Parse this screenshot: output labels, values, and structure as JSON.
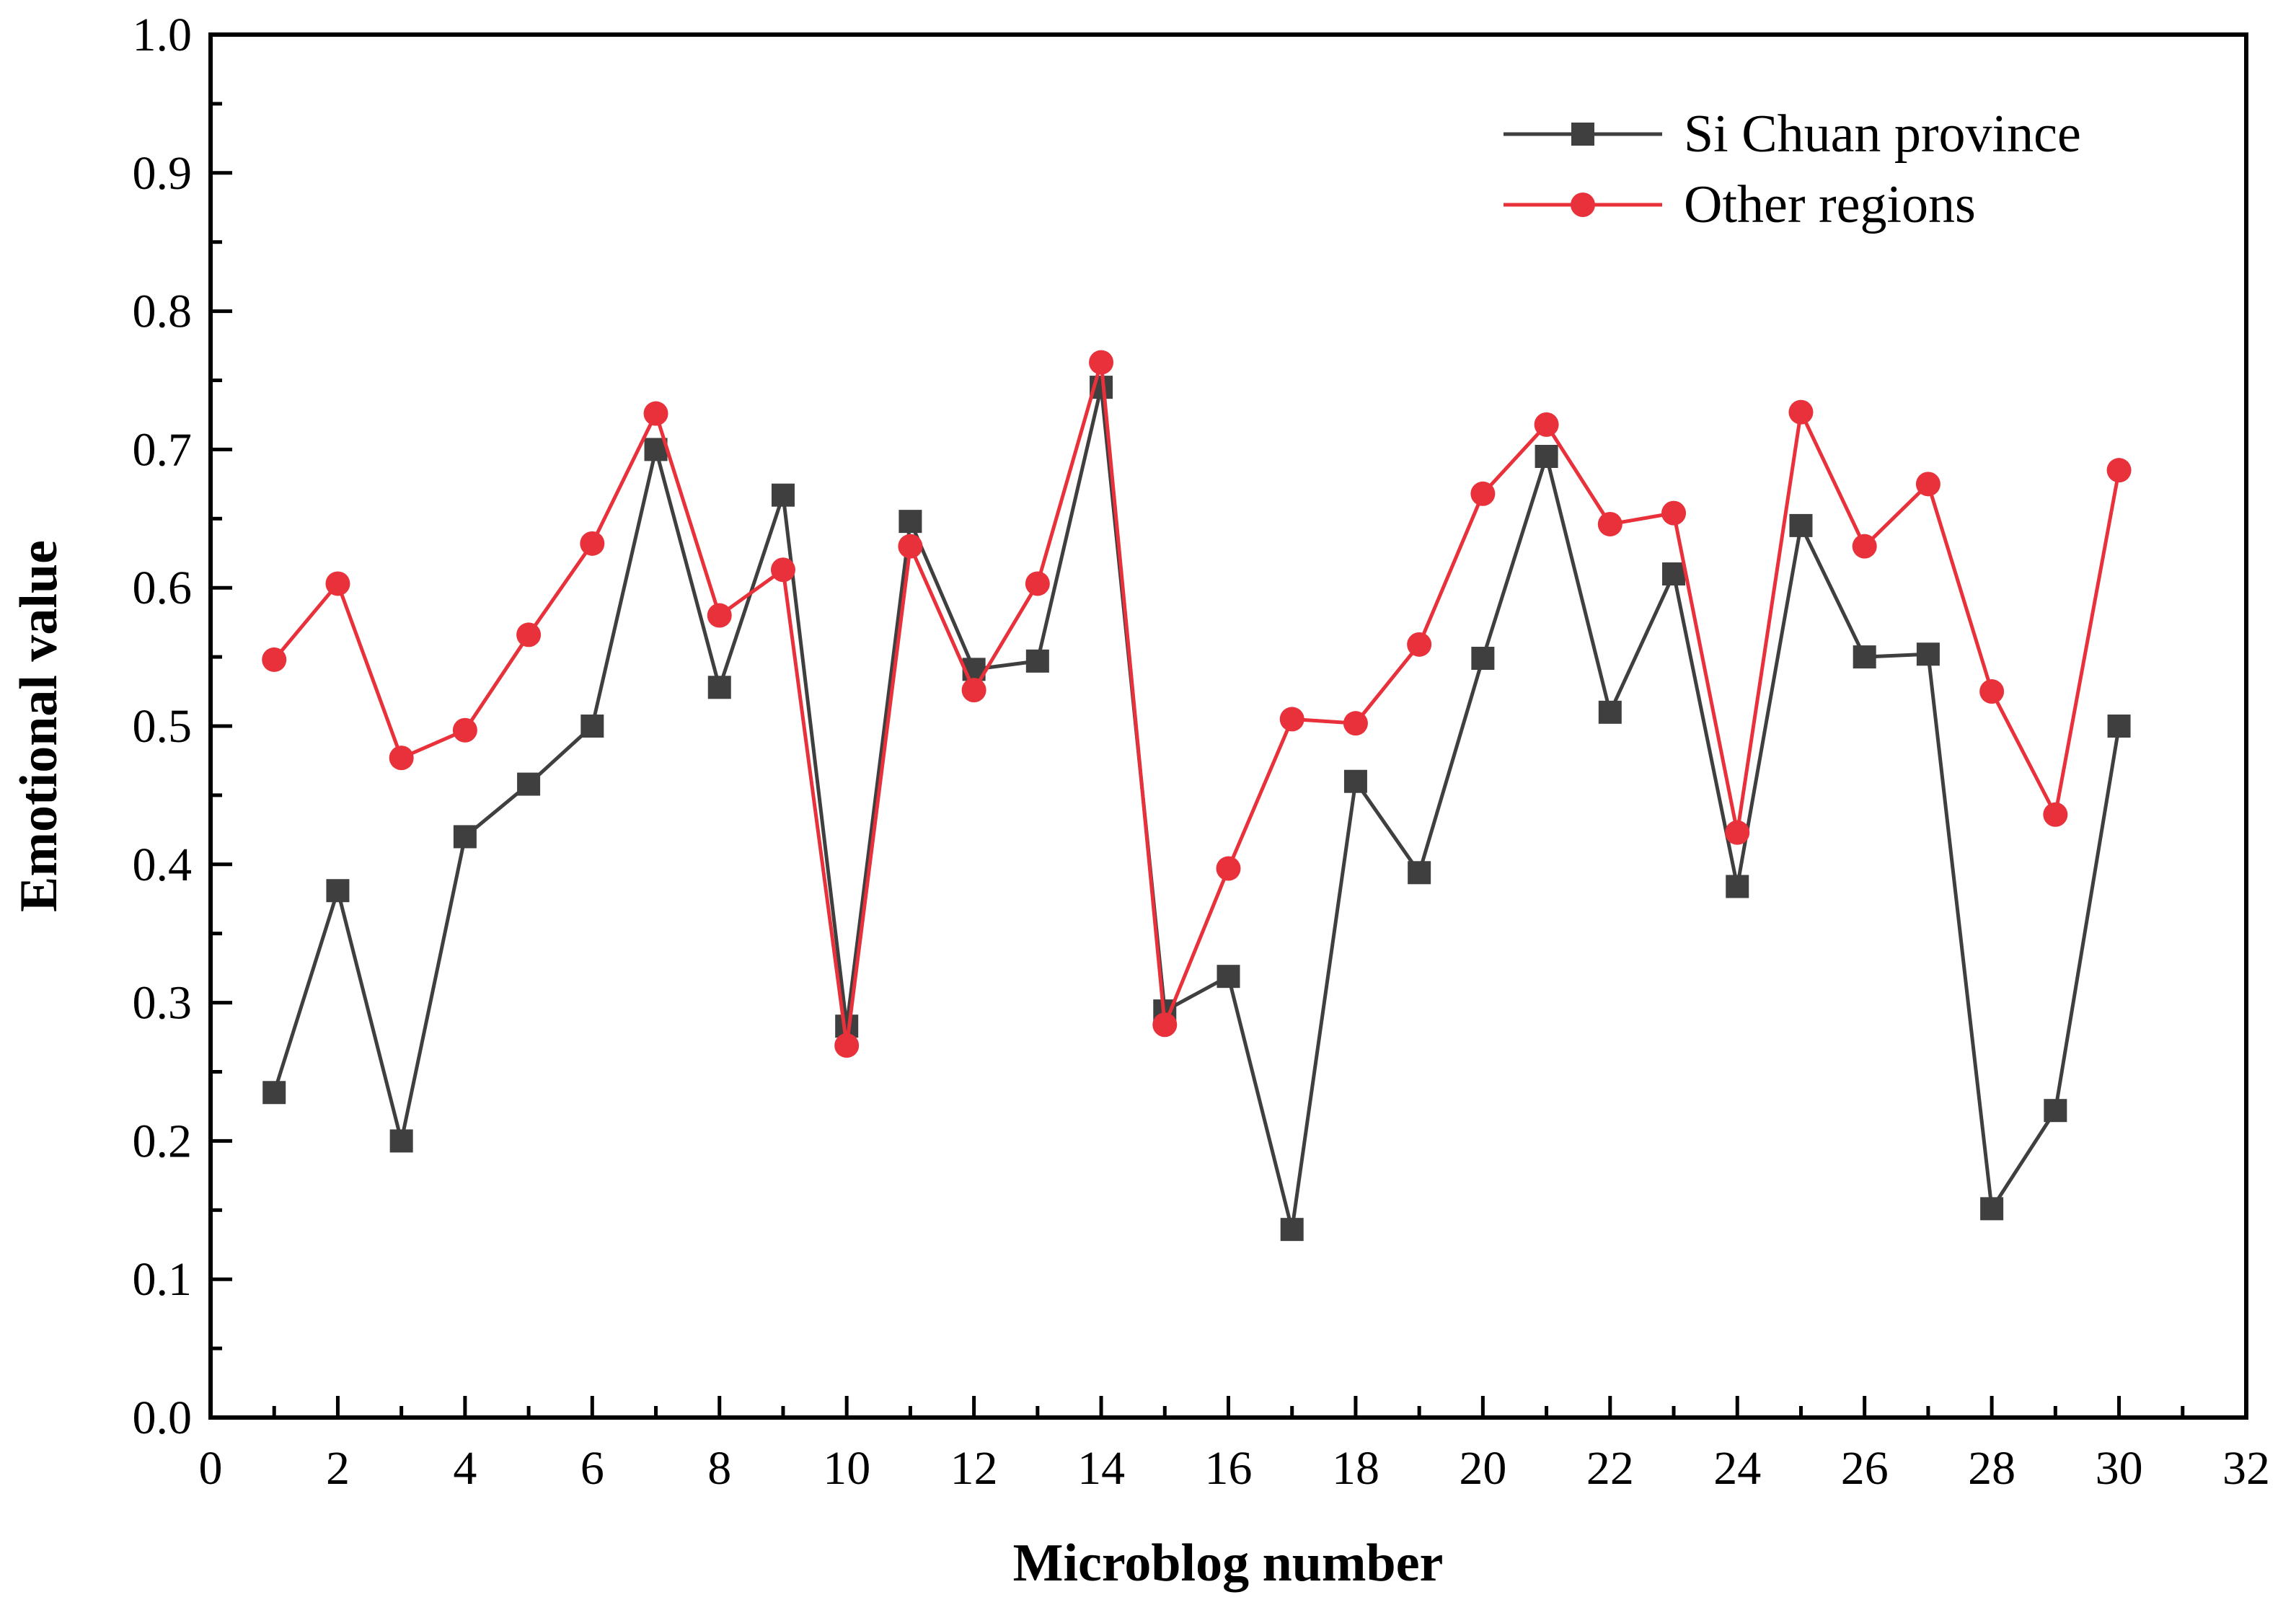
{
  "chart_data": {
    "type": "line",
    "title": "",
    "xlabel": "Microblog number",
    "ylabel": "Emotional value",
    "xlim": [
      0,
      32
    ],
    "ylim": [
      0.0,
      1.0
    ],
    "x_ticks": [
      "0",
      "2",
      "4",
      "6",
      "8",
      "10",
      "12",
      "14",
      "16",
      "18",
      "20",
      "22",
      "24",
      "26",
      "28",
      "30",
      "32"
    ],
    "y_ticks": [
      "0.0",
      "0.1",
      "0.2",
      "0.3",
      "0.4",
      "0.5",
      "0.6",
      "0.7",
      "0.8",
      "0.9",
      "1.0"
    ],
    "x": [
      1,
      2,
      3,
      4,
      5,
      6,
      7,
      8,
      9,
      10,
      11,
      12,
      13,
      14,
      15,
      16,
      17,
      18,
      19,
      20,
      21,
      22,
      23,
      24,
      25,
      26,
      27,
      28,
      29,
      30
    ],
    "legend_position": "top-right",
    "series": [
      {
        "name": "Si Chuan province",
        "marker": "square",
        "color": "#3f3f3f",
        "values": [
          0.235,
          0.381,
          0.2,
          0.42,
          0.458,
          0.5,
          0.7,
          0.528,
          0.667,
          0.283,
          0.648,
          0.541,
          0.547,
          0.745,
          0.294,
          0.319,
          0.136,
          0.46,
          0.394,
          0.549,
          0.695,
          0.51,
          0.61,
          0.384,
          0.645,
          0.55,
          0.552,
          0.151,
          0.222,
          0.5
        ]
      },
      {
        "name": "Other regions",
        "marker": "circle",
        "color": "#e8313a",
        "values": [
          0.548,
          0.603,
          0.477,
          0.497,
          0.566,
          0.632,
          0.726,
          0.58,
          0.613,
          0.269,
          0.63,
          0.526,
          0.603,
          0.763,
          0.284,
          0.397,
          0.505,
          0.502,
          0.559,
          0.668,
          0.718,
          0.646,
          0.654,
          0.423,
          0.727,
          0.63,
          0.675,
          0.525,
          0.436,
          0.685
        ]
      }
    ]
  }
}
